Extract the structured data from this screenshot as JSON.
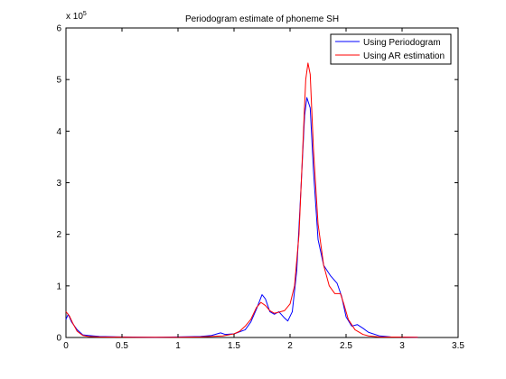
{
  "chart_data": {
    "type": "line",
    "title": "Periodogram estimate of phoneme SH",
    "xlabel": "",
    "ylabel": "",
    "xlim": [
      0,
      3.5
    ],
    "ylim": [
      0,
      6
    ],
    "y_exponent_label": "x 10",
    "y_exponent_power": "5",
    "x_ticks": [
      0,
      0.5,
      1,
      1.5,
      2,
      2.5,
      3,
      3.5
    ],
    "x_tick_labels": [
      "0",
      "0.5",
      "1",
      "1.5",
      "2",
      "2.5",
      "3",
      "3.5"
    ],
    "y_ticks": [
      0,
      1,
      2,
      3,
      4,
      5,
      6
    ],
    "y_tick_labels": [
      "0",
      "1",
      "2",
      "3",
      "4",
      "5",
      "6"
    ],
    "grid": false,
    "legend_position": "top-right",
    "series": [
      {
        "name": "Using Periodogram",
        "color": "#0000ff",
        "points": [
          [
            0.0,
            0.35
          ],
          [
            0.02,
            0.45
          ],
          [
            0.05,
            0.3
          ],
          [
            0.1,
            0.15
          ],
          [
            0.15,
            0.05
          ],
          [
            0.2,
            0.04
          ],
          [
            0.3,
            0.02
          ],
          [
            0.5,
            0.01
          ],
          [
            0.8,
            0.005
          ],
          [
            1.0,
            0.01
          ],
          [
            1.2,
            0.02
          ],
          [
            1.3,
            0.04
          ],
          [
            1.38,
            0.09
          ],
          [
            1.42,
            0.06
          ],
          [
            1.5,
            0.07
          ],
          [
            1.6,
            0.15
          ],
          [
            1.65,
            0.3
          ],
          [
            1.7,
            0.55
          ],
          [
            1.75,
            0.83
          ],
          [
            1.78,
            0.75
          ],
          [
            1.82,
            0.5
          ],
          [
            1.86,
            0.45
          ],
          [
            1.9,
            0.5
          ],
          [
            1.95,
            0.38
          ],
          [
            1.98,
            0.32
          ],
          [
            2.02,
            0.5
          ],
          [
            2.06,
            1.3
          ],
          [
            2.1,
            3.0
          ],
          [
            2.13,
            4.3
          ],
          [
            2.15,
            4.65
          ],
          [
            2.18,
            4.45
          ],
          [
            2.21,
            3.2
          ],
          [
            2.25,
            1.9
          ],
          [
            2.3,
            1.4
          ],
          [
            2.36,
            1.2
          ],
          [
            2.42,
            1.05
          ],
          [
            2.46,
            0.8
          ],
          [
            2.5,
            0.4
          ],
          [
            2.55,
            0.22
          ],
          [
            2.6,
            0.25
          ],
          [
            2.65,
            0.18
          ],
          [
            2.7,
            0.1
          ],
          [
            2.8,
            0.03
          ],
          [
            2.9,
            0.01
          ],
          [
            3.14,
            0.005
          ]
        ]
      },
      {
        "name": "Using AR estimation",
        "color": "#ff0000",
        "points": [
          [
            0.0,
            0.5
          ],
          [
            0.03,
            0.42
          ],
          [
            0.06,
            0.28
          ],
          [
            0.1,
            0.12
          ],
          [
            0.15,
            0.04
          ],
          [
            0.2,
            0.02
          ],
          [
            0.3,
            0.01
          ],
          [
            0.6,
            0.005
          ],
          [
            1.0,
            0.005
          ],
          [
            1.2,
            0.01
          ],
          [
            1.4,
            0.03
          ],
          [
            1.5,
            0.07
          ],
          [
            1.55,
            0.12
          ],
          [
            1.6,
            0.22
          ],
          [
            1.65,
            0.35
          ],
          [
            1.7,
            0.58
          ],
          [
            1.74,
            0.68
          ],
          [
            1.78,
            0.62
          ],
          [
            1.82,
            0.52
          ],
          [
            1.86,
            0.47
          ],
          [
            1.9,
            0.49
          ],
          [
            1.95,
            0.52
          ],
          [
            2.0,
            0.65
          ],
          [
            2.04,
            1.0
          ],
          [
            2.08,
            2.0
          ],
          [
            2.11,
            3.5
          ],
          [
            2.14,
            5.0
          ],
          [
            2.16,
            5.32
          ],
          [
            2.18,
            5.1
          ],
          [
            2.21,
            3.6
          ],
          [
            2.25,
            2.2
          ],
          [
            2.3,
            1.4
          ],
          [
            2.35,
            1.0
          ],
          [
            2.4,
            0.85
          ],
          [
            2.45,
            0.85
          ],
          [
            2.48,
            0.65
          ],
          [
            2.52,
            0.35
          ],
          [
            2.58,
            0.15
          ],
          [
            2.65,
            0.06
          ],
          [
            2.7,
            0.03
          ],
          [
            2.8,
            0.01
          ],
          [
            3.14,
            0.005
          ]
        ]
      }
    ]
  }
}
